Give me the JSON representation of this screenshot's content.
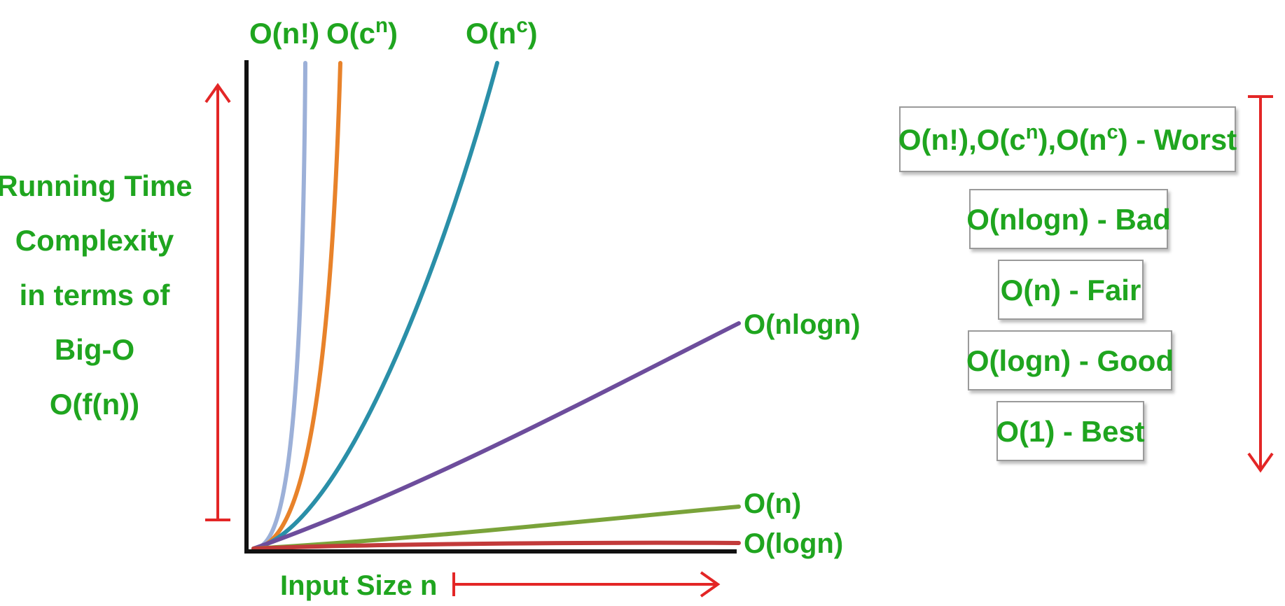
{
  "colors": {
    "label_green": "#1fa51f",
    "arrow_red": "#e32626",
    "axis": "#111111",
    "legend_border": "#9a9a9a"
  },
  "chart_data": {
    "type": "line",
    "title": "",
    "ylabel_lines": [
      "Running Time",
      "Complexity",
      "in terms of",
      "Big-O",
      "O(f(n))"
    ],
    "xlabel": "Input Size n",
    "grid": false,
    "x_ticks": false,
    "y_ticks": false,
    "series": [
      {
        "name": "O(n!)",
        "base": "O(n",
        "sup": "",
        "tail": "!)",
        "color": "#9cb0d8",
        "function": "factorial"
      },
      {
        "name": "O(c^n)",
        "base": "O(c",
        "sup": "n",
        "tail": ")",
        "color": "#e8822a",
        "function": "exponential"
      },
      {
        "name": "O(n^c)",
        "base": "O(n",
        "sup": "c",
        "tail": ")",
        "color": "#2a8fa8",
        "function": "polynomial"
      },
      {
        "name": "O(nlogn)",
        "base": "O(nlogn)",
        "sup": "",
        "tail": "",
        "color": "#6d4d9c",
        "function": "linearithmic"
      },
      {
        "name": "O(n)",
        "base": "O(n)",
        "sup": "",
        "tail": "",
        "color": "#7aa33a",
        "function": "linear"
      },
      {
        "name": "O(logn)",
        "base": "O(logn)",
        "sup": "",
        "tail": "",
        "color": "#c23a3a",
        "function": "logarithmic"
      }
    ],
    "legend_rows": [
      {
        "parts": [
          {
            "t": "O(n!),O(c"
          },
          {
            "t": "n",
            "sup": true
          },
          {
            "t": "),O(n"
          },
          {
            "t": "c",
            "sup": true
          },
          {
            "t": ") - Worst"
          }
        ]
      },
      {
        "parts": [
          {
            "t": "O(nlogn) - Bad"
          }
        ]
      },
      {
        "parts": [
          {
            "t": "O(n) - Fair"
          }
        ]
      },
      {
        "parts": [
          {
            "t": "O(logn) - Good"
          }
        ]
      },
      {
        "parts": [
          {
            "t": "O(1) - Best"
          }
        ]
      }
    ]
  }
}
